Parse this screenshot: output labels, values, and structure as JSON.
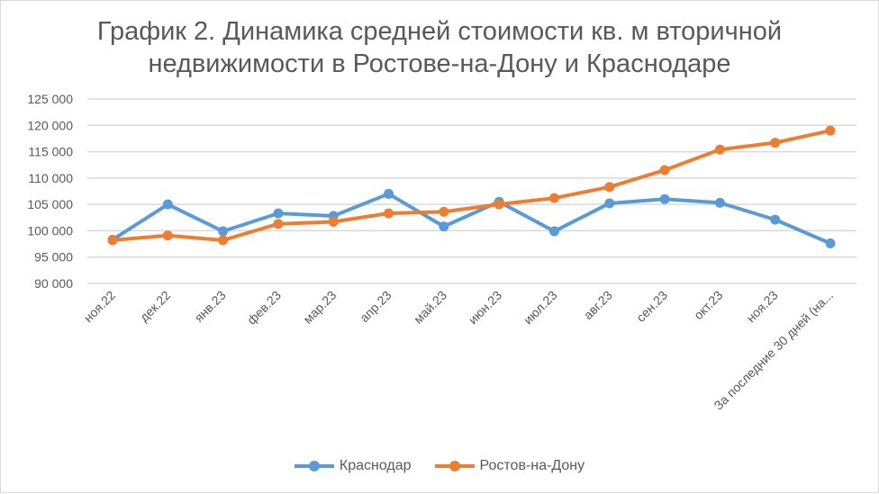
{
  "chart_data": {
    "type": "line",
    "title_line1": "График 2. Динамика средней стоимости кв. м вторичной",
    "title_line2": "недвижимости в Ростове-на-Дону и Краснодаре",
    "categories": [
      "ноя.22",
      "дек.22",
      "янв.23",
      "фев.23",
      "мар.23",
      "апр.23",
      "май.23",
      "июн.23",
      "июл.23",
      "авг.23",
      "сен.23",
      "окт.23",
      "ноя.23",
      "За последние 30 дней (на..."
    ],
    "ylim": [
      90000,
      125000
    ],
    "yticks": [
      "90 000",
      "95 000",
      "100 000",
      "105 000",
      "110 000",
      "115 000",
      "120 000",
      "125 000"
    ],
    "grid": true,
    "legend_position": "bottom",
    "series": [
      {
        "name": "Краснодар",
        "color": "#5B9BD5",
        "values": [
          98300,
          105000,
          99900,
          103300,
          102800,
          107000,
          100800,
          105500,
          99900,
          105200,
          106000,
          105300,
          102100,
          97600
        ]
      },
      {
        "name": "Ростов-на-Дону",
        "color": "#ED7D31",
        "values": [
          98200,
          99100,
          98200,
          101300,
          101700,
          103300,
          103600,
          105000,
          106200,
          108300,
          111500,
          115400,
          116700,
          119000
        ]
      }
    ]
  }
}
